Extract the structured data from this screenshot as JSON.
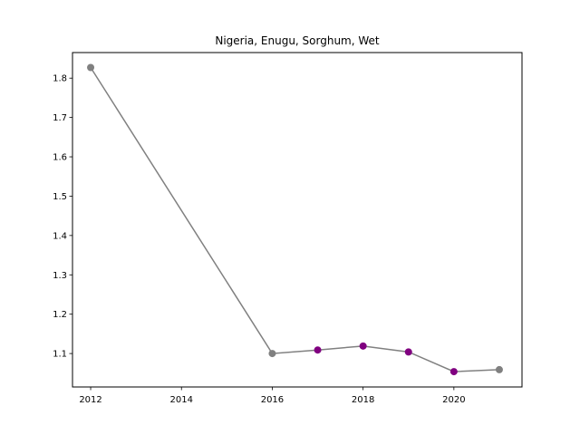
{
  "chart_data": {
    "type": "line",
    "title": "Nigeria, Enugu, Sorghum, Wet",
    "xlabel": "",
    "ylabel": "",
    "xlim": [
      2011.6,
      2021.5
    ],
    "ylim": [
      1.015,
      1.865
    ],
    "x_ticks": [
      2012,
      2014,
      2016,
      2018,
      2020
    ],
    "y_ticks": [
      1.1,
      1.2,
      1.3,
      1.4,
      1.5,
      1.6,
      1.7,
      1.8
    ],
    "grid": false,
    "line_color": "#808080",
    "series": [
      {
        "points": [
          {
            "x": 2012,
            "y": 1.827,
            "color": "#808080"
          },
          {
            "x": 2016,
            "y": 1.1,
            "color": "#808080"
          },
          {
            "x": 2017,
            "y": 1.109,
            "color": "#800080"
          },
          {
            "x": 2018,
            "y": 1.119,
            "color": "#800080"
          },
          {
            "x": 2019,
            "y": 1.104,
            "color": "#800080"
          },
          {
            "x": 2020,
            "y": 1.054,
            "color": "#800080"
          },
          {
            "x": 2021,
            "y": 1.059,
            "color": "#808080"
          }
        ]
      }
    ]
  }
}
